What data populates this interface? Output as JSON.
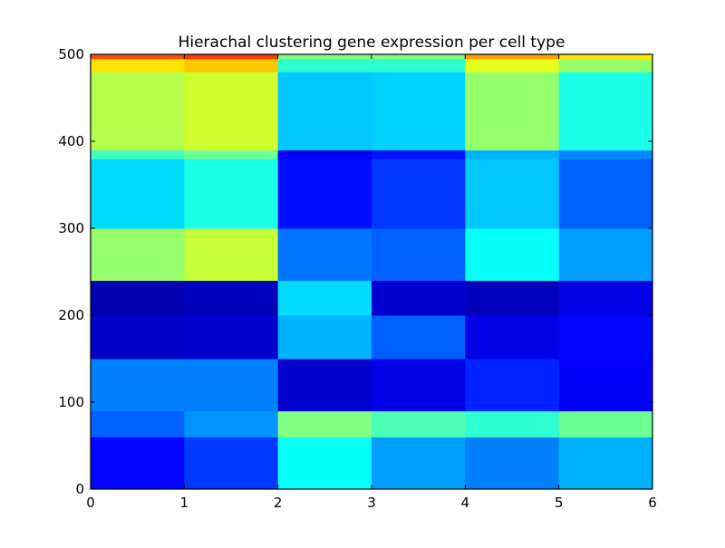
{
  "chart_data": {
    "type": "heatmap",
    "title": "Hierachal clustering gene expression per cell type",
    "xlabel": "",
    "ylabel": "",
    "xlim": [
      0,
      6
    ],
    "ylim": [
      0,
      500
    ],
    "x_ticks": [
      "0",
      "1",
      "2",
      "3",
      "4",
      "5",
      "6"
    ],
    "y_ticks": [
      "0",
      "100",
      "200",
      "300",
      "400",
      "500"
    ],
    "grid": false,
    "legend": "none",
    "colormap": "jet",
    "value_range": [
      0,
      1
    ],
    "columns": [
      "0",
      "1",
      "2",
      "3",
      "4",
      "5"
    ],
    "row_blocks": [
      {
        "y0": 0,
        "y1": 60,
        "values": [
          0.13,
          0.18,
          0.38,
          0.28,
          0.25,
          0.3
        ]
      },
      {
        "y0": 60,
        "y1": 90,
        "values": [
          0.22,
          0.27,
          0.5,
          0.45,
          0.42,
          0.48
        ]
      },
      {
        "y0": 90,
        "y1": 150,
        "values": [
          0.25,
          0.25,
          0.08,
          0.1,
          0.16,
          0.12
        ]
      },
      {
        "y0": 150,
        "y1": 200,
        "values": [
          0.07,
          0.08,
          0.3,
          0.22,
          0.1,
          0.13
        ]
      },
      {
        "y0": 200,
        "y1": 240,
        "values": [
          0.05,
          0.06,
          0.34,
          0.08,
          0.06,
          0.1
        ]
      },
      {
        "y0": 240,
        "y1": 300,
        "values": [
          0.52,
          0.57,
          0.24,
          0.22,
          0.38,
          0.28
        ]
      },
      {
        "y0": 300,
        "y1": 380,
        "values": [
          0.34,
          0.4,
          0.14,
          0.18,
          0.32,
          0.22
        ]
      },
      {
        "y0": 380,
        "y1": 390,
        "values": [
          0.44,
          0.48,
          0.12,
          0.14,
          0.3,
          0.26
        ]
      },
      {
        "y0": 390,
        "y1": 480,
        "values": [
          0.55,
          0.58,
          0.32,
          0.33,
          0.52,
          0.4
        ]
      },
      {
        "y0": 480,
        "y1": 495,
        "values": [
          0.65,
          0.68,
          0.42,
          0.42,
          0.6,
          0.52
        ]
      },
      {
        "y0": 495,
        "y1": 500,
        "values": [
          0.8,
          0.82,
          0.5,
          0.5,
          0.72,
          0.65
        ]
      }
    ]
  }
}
